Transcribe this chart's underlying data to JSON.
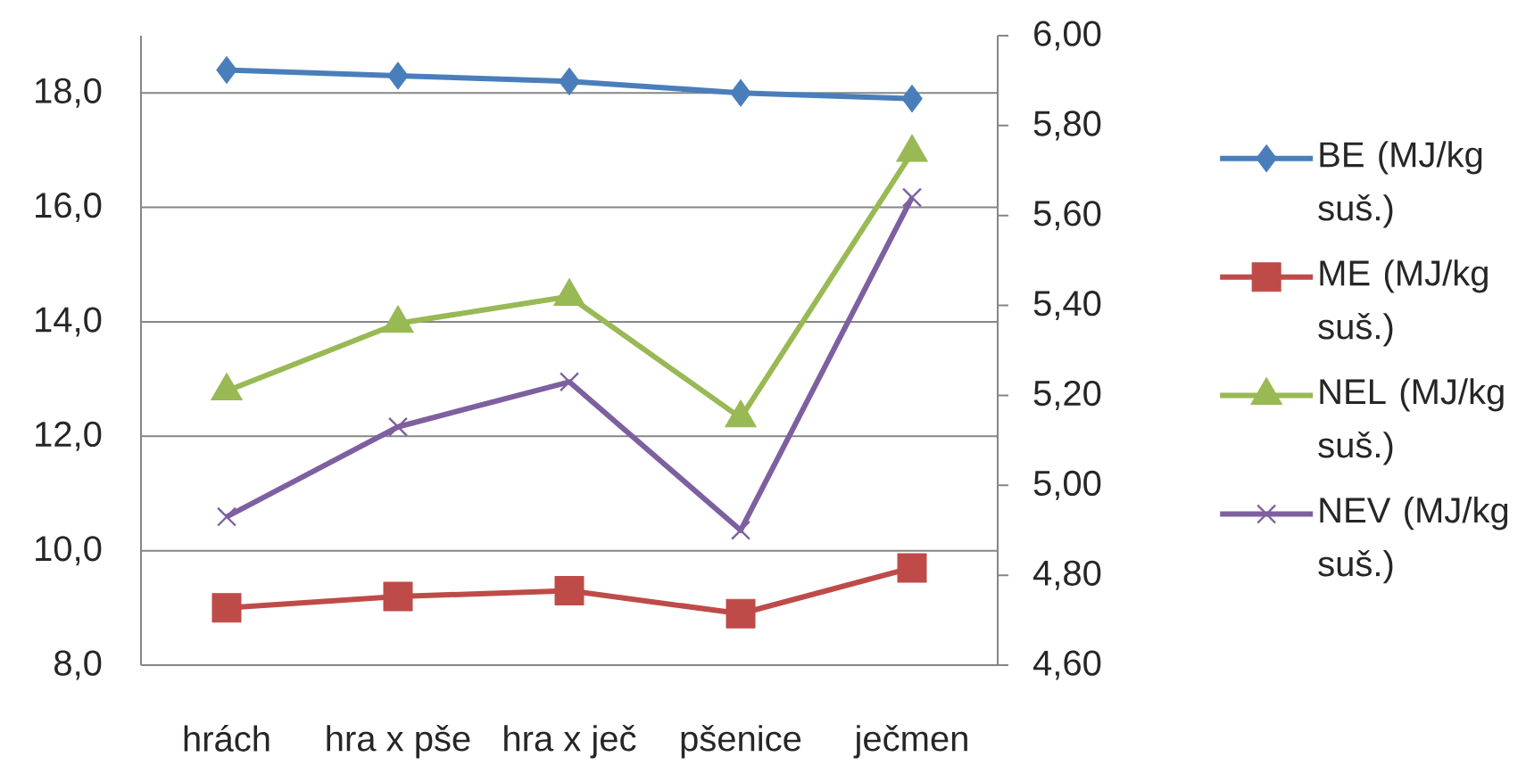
{
  "chart_data": {
    "type": "line",
    "categories": [
      "hrách",
      "hra x pše",
      "hra x ječ",
      "pšenice",
      "ječmen"
    ],
    "series": [
      {
        "name": "BE (MJ/kg suš.)",
        "color": "#4a7ebb",
        "marker": "diamond",
        "values": [
          18.4,
          18.3,
          18.2,
          18.0,
          17.9
        ]
      },
      {
        "name": "ME (MJ/kg suš.)",
        "color": "#be4b48",
        "marker": "square",
        "values": [
          9.0,
          9.2,
          9.3,
          8.9,
          9.7
        ]
      },
      {
        "name": "NEL (MJ/kg suš.)",
        "color": "#98b954",
        "marker": "triangle",
        "axis": "y2",
        "values": [
          5.21,
          5.36,
          5.42,
          5.15,
          5.74
        ]
      },
      {
        "name": "NEV (MJ/kg suš.)",
        "color": "#7d60a0",
        "marker": "cross",
        "axis": "y2",
        "values": [
          4.93,
          5.13,
          5.23,
          4.9,
          5.64
        ]
      }
    ],
    "ylim": [
      8,
      19
    ],
    "yticks": [
      {
        "value": 8,
        "label": "8,0"
      },
      {
        "value": 10,
        "label": "10,0"
      },
      {
        "value": 12,
        "label": "12,0"
      },
      {
        "value": 14,
        "label": "14,0"
      },
      {
        "value": 16,
        "label": "16,0"
      },
      {
        "value": 18,
        "label": "18,0"
      }
    ],
    "y2lim": [
      4.6,
      6.0
    ],
    "y2ticks": [
      {
        "value": 4.6,
        "label": "4,60"
      },
      {
        "value": 4.8,
        "label": "4,80"
      },
      {
        "value": 5.0,
        "label": "5,00"
      },
      {
        "value": 5.2,
        "label": "5,20"
      },
      {
        "value": 5.4,
        "label": "5,40"
      },
      {
        "value": 5.6,
        "label": "5,60"
      },
      {
        "value": 5.8,
        "label": "5,80"
      },
      {
        "value": 6.0,
        "label": "6,00"
      }
    ],
    "grid": "y",
    "legend": "right"
  }
}
